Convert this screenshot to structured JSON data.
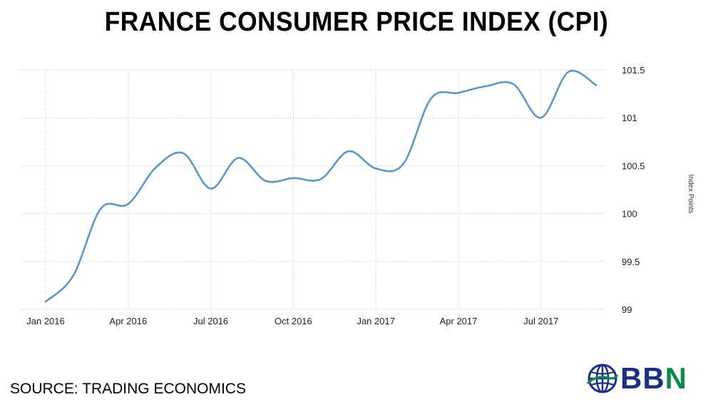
{
  "title": "FRANCE CONSUMER PRICE INDEX (CPI)",
  "source": "SOURCE: TRADING ECONOMICS",
  "logo": {
    "icon": "globe-icon",
    "text_main": "BB",
    "text_accent": "N",
    "colors": {
      "main": "#1b2f8a",
      "accent": "#0d8a4a"
    }
  },
  "chart_data": {
    "type": "line",
    "title": "FRANCE CONSUMER PRICE INDEX (CPI)",
    "xlabel": "",
    "ylabel": "Index Points",
    "ylim": [
      99,
      101.5
    ],
    "yticks": [
      99,
      99.5,
      100,
      100.5,
      101,
      101.5
    ],
    "ytick_labels": [
      "99",
      "99.5",
      "100",
      "100.5",
      "101",
      "101.5"
    ],
    "xtick_labels": [
      "Jan 2016",
      "Apr 2016",
      "Jul 2016",
      "Oct 2016",
      "Jan 2017",
      "Apr 2017",
      "Jul 2017"
    ],
    "xtick_positions": [
      0,
      3,
      6,
      9,
      12,
      15,
      18
    ],
    "grid": true,
    "line_color": "#5b97c0",
    "series": [
      {
        "x": [
          "Jan 2016",
          "Feb 2016",
          "Mar 2016",
          "Apr 2016",
          "May 2016",
          "Jun 2016",
          "Jul 2016",
          "Aug 2016",
          "Sep 2016",
          "Oct 2016",
          "Nov 2016",
          "Dec 2016",
          "Jan 2017",
          "Feb 2017",
          "Mar 2017",
          "Apr 2017",
          "May 2017",
          "Jun 2017",
          "Jul 2017",
          "Aug 2017",
          "Sep 2017"
        ],
        "values": [
          99.08,
          99.35,
          100.05,
          100.1,
          100.48,
          100.63,
          100.26,
          100.58,
          100.34,
          100.37,
          100.36,
          100.65,
          100.47,
          100.52,
          101.2,
          101.26,
          101.33,
          101.35,
          101.0,
          101.48,
          101.34
        ]
      }
    ]
  }
}
